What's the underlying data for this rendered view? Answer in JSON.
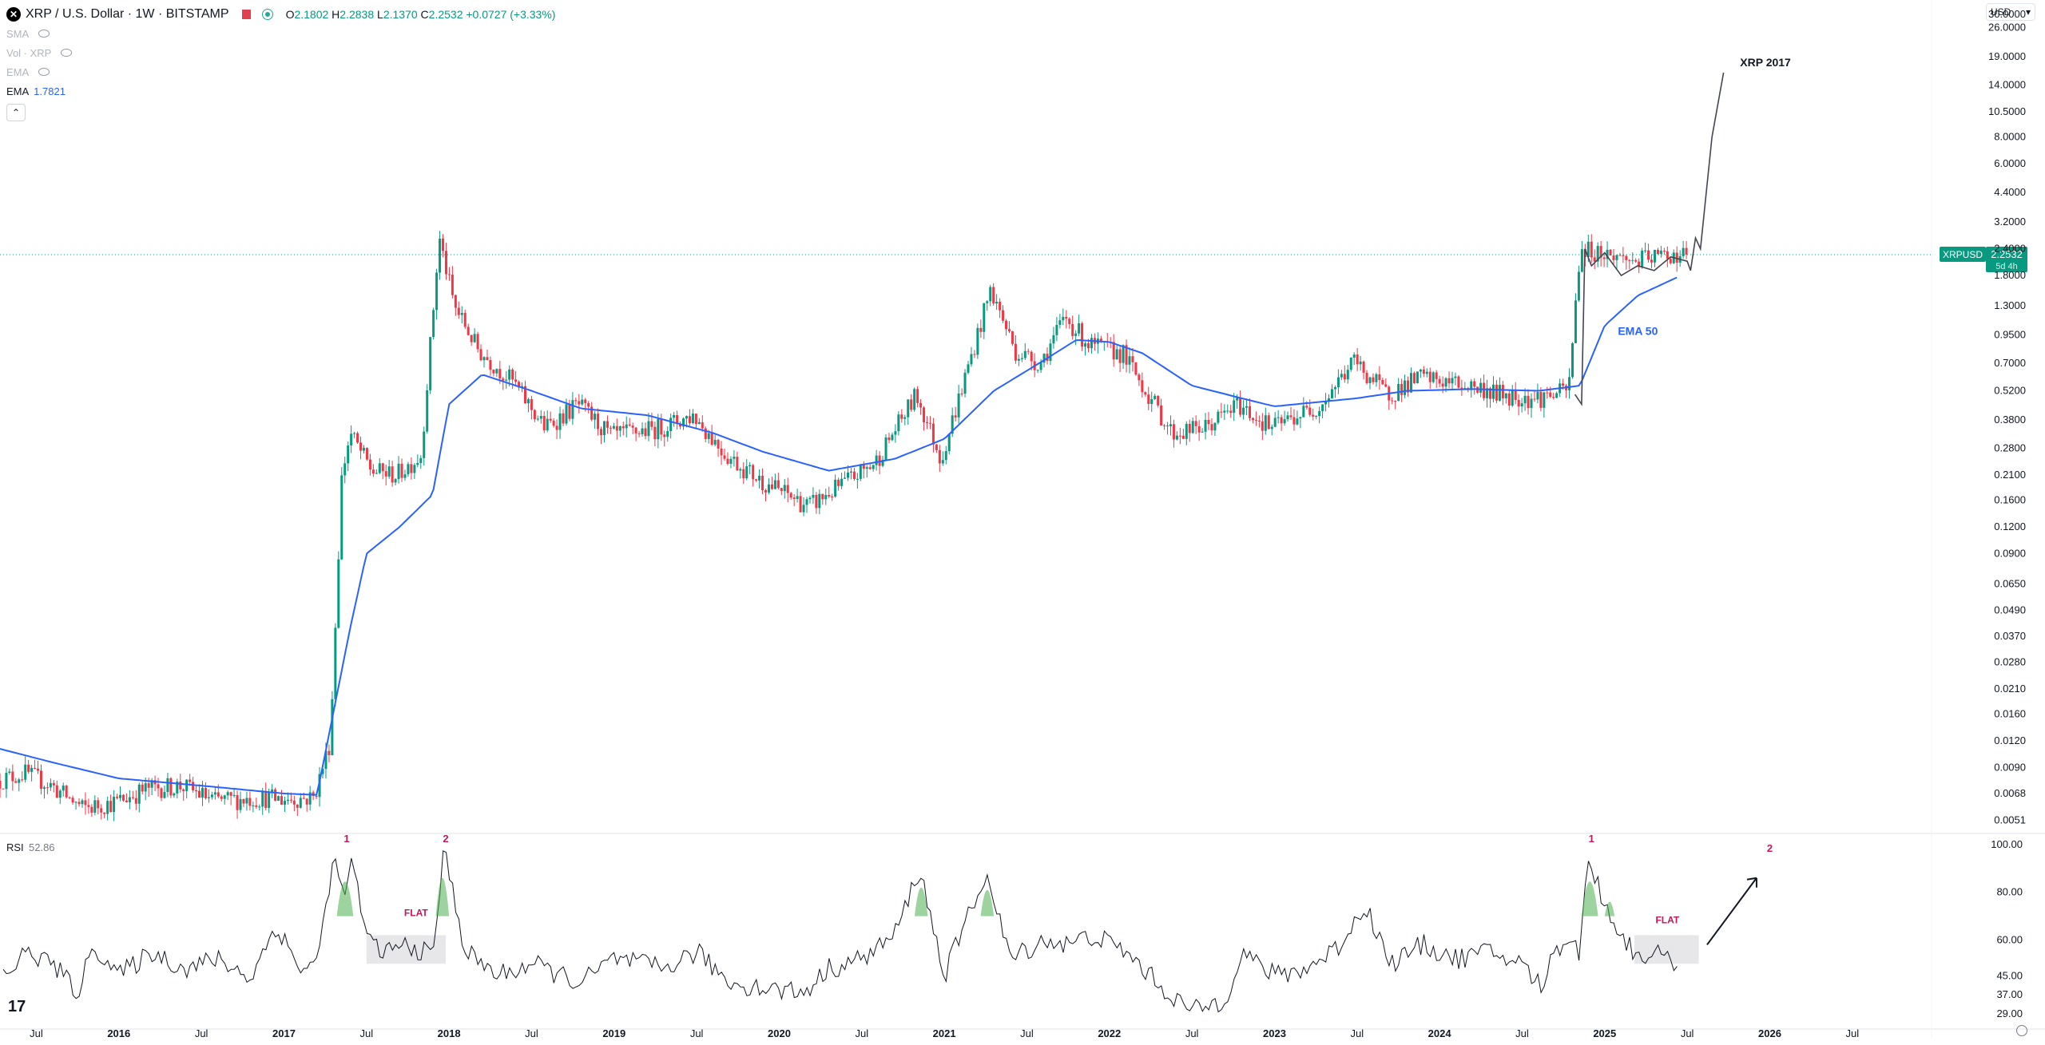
{
  "header": {
    "symbol_title": "XRP / U.S. Dollar · 1W · BITSTAMP",
    "ohlc": {
      "o_label": "O",
      "o": "2.1802",
      "h_label": "H",
      "h": "2.2838",
      "l_label": "L",
      "l": "2.1370",
      "c_label": "C",
      "c": "2.2532",
      "change": "+0.0727 (+3.33%)"
    },
    "indicators": [
      {
        "name": "SMA",
        "value": ""
      },
      {
        "name": "Vol · XRP",
        "value": ""
      },
      {
        "name": "EMA",
        "value": ""
      },
      {
        "name": "EMA",
        "value": "1.7821"
      }
    ],
    "currency": "USD"
  },
  "price_label": {
    "symbol": "XRPUSD",
    "price": "2.2532",
    "countdown": "5d 4h"
  },
  "annotations": {
    "xrp2017": "XRP 2017",
    "ema50": "EMA 50",
    "rsi_marks": [
      "1",
      "2",
      "FLAT",
      "1",
      "FLAT",
      "2"
    ]
  },
  "rsi_legend": {
    "name": "RSI",
    "value": "52.86"
  },
  "colors": {
    "up": "#089981",
    "down": "#f23645",
    "ema": "#2962ff",
    "rsi_line": "#131722",
    "peak_fill": "#4caf50",
    "price_line": "#089981",
    "annot_red": "#c2185b"
  },
  "chart_data": [
    {
      "type": "candlestick",
      "title": "XRP / U.S. Dollar · 1W · BITSTAMP",
      "y_scale": "log",
      "ylim": [
        0.0045,
        35
      ],
      "y_ticks": [
        "30.0000",
        "26.0000",
        "19.0000",
        "14.0000",
        "10.5000",
        "8.0000",
        "6.0000",
        "4.4000",
        "3.2000",
        "2.4000",
        "1.8000",
        "1.3000",
        "0.9500",
        "0.7000",
        "0.5200",
        "0.3800",
        "0.2800",
        "0.2100",
        "0.1600",
        "0.1200",
        "0.0900",
        "0.0650",
        "0.0490",
        "0.0370",
        "0.0280",
        "0.0210",
        "0.0160",
        "0.0120",
        "0.0090",
        "0.0068",
        "0.0051"
      ],
      "x_ticks": [
        "Jul",
        "2016",
        "Jul",
        "2017",
        "Jul",
        "2018",
        "Jul",
        "2019",
        "Jul",
        "2020",
        "Jul",
        "2021",
        "Jul",
        "2022",
        "Jul",
        "2023",
        "Jul",
        "2024",
        "Jul",
        "2025",
        "Jul",
        "2026",
        "Jul"
      ],
      "x_tick_dates": [
        2015.5,
        2016,
        2016.5,
        2017,
        2017.5,
        2018,
        2018.5,
        2019,
        2019.5,
        2020,
        2020.5,
        2021,
        2021.5,
        2022,
        2022.5,
        2023,
        2023.5,
        2024,
        2024.5,
        2025,
        2025.5,
        2026,
        2026.5
      ],
      "xlim": [
        2015.28,
        2026.98
      ],
      "series": [
        {
          "name": "XRPUSD",
          "points": [
            [
              2015.28,
              0.0078
            ],
            [
              2015.45,
              0.0085
            ],
            [
              2015.6,
              0.0075
            ],
            [
              2015.8,
              0.0058
            ],
            [
              2016.0,
              0.0062
            ],
            [
              2016.2,
              0.0072
            ],
            [
              2016.4,
              0.0074
            ],
            [
              2016.6,
              0.0063
            ],
            [
              2016.9,
              0.0065
            ],
            [
              2017.0,
              0.0064
            ],
            [
              2017.2,
              0.0065
            ],
            [
              2017.3,
              0.012
            ],
            [
              2017.37,
              0.21
            ],
            [
              2017.42,
              0.33
            ],
            [
              2017.55,
              0.22
            ],
            [
              2017.7,
              0.21
            ],
            [
              2017.85,
              0.26
            ],
            [
              2017.96,
              2.7
            ],
            [
              2018.05,
              1.3
            ],
            [
              2018.2,
              0.8
            ],
            [
              2018.4,
              0.58
            ],
            [
              2018.6,
              0.35
            ],
            [
              2018.8,
              0.45
            ],
            [
              2019.0,
              0.32
            ],
            [
              2019.3,
              0.35
            ],
            [
              2019.5,
              0.4
            ],
            [
              2019.7,
              0.26
            ],
            [
              2019.9,
              0.2
            ],
            [
              2020.2,
              0.15
            ],
            [
              2020.4,
              0.19
            ],
            [
              2020.6,
              0.24
            ],
            [
              2020.85,
              0.5
            ],
            [
              2021.0,
              0.25
            ],
            [
              2021.3,
              1.55
            ],
            [
              2021.45,
              0.8
            ],
            [
              2021.6,
              0.7
            ],
            [
              2021.75,
              1.15
            ],
            [
              2021.9,
              0.85
            ],
            [
              2022.1,
              0.78
            ],
            [
              2022.4,
              0.33
            ],
            [
              2022.6,
              0.35
            ],
            [
              2022.8,
              0.45
            ],
            [
              2023.0,
              0.35
            ],
            [
              2023.3,
              0.45
            ],
            [
              2023.5,
              0.72
            ],
            [
              2023.7,
              0.5
            ],
            [
              2023.9,
              0.6
            ],
            [
              2024.2,
              0.55
            ],
            [
              2024.4,
              0.5
            ],
            [
              2024.6,
              0.48
            ],
            [
              2024.8,
              0.52
            ],
            [
              2024.87,
              2.4
            ],
            [
              2025.0,
              2.3
            ],
            [
              2025.2,
              2.1
            ],
            [
              2025.4,
              2.25
            ],
            [
              2025.5,
              2.2532
            ]
          ]
        },
        {
          "name": "EMA 50",
          "points": [
            [
              2015.28,
              0.011
            ],
            [
              2015.6,
              0.0095
            ],
            [
              2016.0,
              0.008
            ],
            [
              2016.5,
              0.0074
            ],
            [
              2017.0,
              0.0068
            ],
            [
              2017.2,
              0.0067
            ],
            [
              2017.4,
              0.04
            ],
            [
              2017.5,
              0.09
            ],
            [
              2017.7,
              0.12
            ],
            [
              2017.9,
              0.17
            ],
            [
              2018.0,
              0.45
            ],
            [
              2018.2,
              0.62
            ],
            [
              2018.5,
              0.52
            ],
            [
              2018.8,
              0.43
            ],
            [
              2019.2,
              0.4
            ],
            [
              2019.6,
              0.33
            ],
            [
              2019.9,
              0.27
            ],
            [
              2020.3,
              0.22
            ],
            [
              2020.7,
              0.25
            ],
            [
              2021.0,
              0.31
            ],
            [
              2021.3,
              0.52
            ],
            [
              2021.6,
              0.72
            ],
            [
              2021.8,
              0.9
            ],
            [
              2022.0,
              0.88
            ],
            [
              2022.2,
              0.78
            ],
            [
              2022.5,
              0.55
            ],
            [
              2022.8,
              0.48
            ],
            [
              2023.0,
              0.44
            ],
            [
              2023.5,
              0.48
            ],
            [
              2023.8,
              0.52
            ],
            [
              2024.2,
              0.53
            ],
            [
              2024.6,
              0.52
            ],
            [
              2024.85,
              0.55
            ],
            [
              2025.0,
              1.05
            ],
            [
              2025.2,
              1.45
            ],
            [
              2025.45,
              1.7821
            ]
          ]
        },
        {
          "name": "XRP 2017",
          "points": [
            [
              2024.82,
              0.5
            ],
            [
              2024.86,
              0.45
            ],
            [
              2024.88,
              2.4
            ],
            [
              2024.92,
              2.0
            ],
            [
              2025.0,
              2.3
            ],
            [
              2025.1,
              1.8
            ],
            [
              2025.2,
              2.0
            ],
            [
              2025.3,
              1.9
            ],
            [
              2025.4,
              2.2
            ],
            [
              2025.5,
              2.1
            ],
            [
              2025.52,
              1.9
            ],
            [
              2025.55,
              2.7
            ],
            [
              2025.58,
              2.4
            ],
            [
              2025.65,
              8.0
            ],
            [
              2025.72,
              16.0
            ]
          ]
        }
      ],
      "last_price": 2.2532
    },
    {
      "type": "line",
      "title": "RSI",
      "ylim": [
        25,
        104
      ],
      "y_ticks": [
        "100.00",
        "80.00",
        "60.00",
        "45.00",
        "37.00",
        "29.00"
      ],
      "series": [
        {
          "name": "RSI",
          "points": [
            [
              2015.3,
              45
            ],
            [
              2015.45,
              55
            ],
            [
              2015.6,
              50
            ],
            [
              2015.75,
              38
            ],
            [
              2015.85,
              58
            ],
            [
              2016.0,
              45
            ],
            [
              2016.2,
              55
            ],
            [
              2016.4,
              48
            ],
            [
              2016.6,
              52
            ],
            [
              2016.8,
              44
            ],
            [
              2016.95,
              66
            ],
            [
              2017.1,
              48
            ],
            [
              2017.2,
              50
            ],
            [
              2017.3,
              95
            ],
            [
              2017.35,
              80
            ],
            [
              2017.42,
              92
            ],
            [
              2017.5,
              60
            ],
            [
              2017.6,
              55
            ],
            [
              2017.75,
              58
            ],
            [
              2017.9,
              53
            ],
            [
              2017.97,
              98
            ],
            [
              2018.1,
              55
            ],
            [
              2018.3,
              45
            ],
            [
              2018.5,
              50
            ],
            [
              2018.8,
              42
            ],
            [
              2019.0,
              52
            ],
            [
              2019.3,
              48
            ],
            [
              2019.5,
              55
            ],
            [
              2019.7,
              42
            ],
            [
              2019.9,
              40
            ],
            [
              2020.15,
              38
            ],
            [
              2020.3,
              48
            ],
            [
              2020.5,
              52
            ],
            [
              2020.7,
              62
            ],
            [
              2020.85,
              90
            ],
            [
              2021.0,
              45
            ],
            [
              2021.25,
              88
            ],
            [
              2021.4,
              52
            ],
            [
              2021.6,
              60
            ],
            [
              2021.75,
              58
            ],
            [
              2021.9,
              62
            ],
            [
              2022.1,
              55
            ],
            [
              2022.35,
              38
            ],
            [
              2022.5,
              30
            ],
            [
              2022.7,
              35
            ],
            [
              2022.8,
              55
            ],
            [
              2023.0,
              45
            ],
            [
              2023.2,
              48
            ],
            [
              2023.4,
              58
            ],
            [
              2023.55,
              75
            ],
            [
              2023.7,
              50
            ],
            [
              2023.9,
              58
            ],
            [
              2024.1,
              52
            ],
            [
              2024.3,
              55
            ],
            [
              2024.5,
              50
            ],
            [
              2024.62,
              40
            ],
            [
              2024.7,
              56
            ],
            [
              2024.8,
              62
            ],
            [
              2024.85,
              54
            ],
            [
              2024.9,
              95
            ],
            [
              2025.0,
              75
            ],
            [
              2025.1,
              62
            ],
            [
              2025.2,
              53
            ],
            [
              2025.3,
              55
            ],
            [
              2025.4,
              50
            ],
            [
              2025.45,
              52.86
            ]
          ]
        }
      ]
    }
  ]
}
